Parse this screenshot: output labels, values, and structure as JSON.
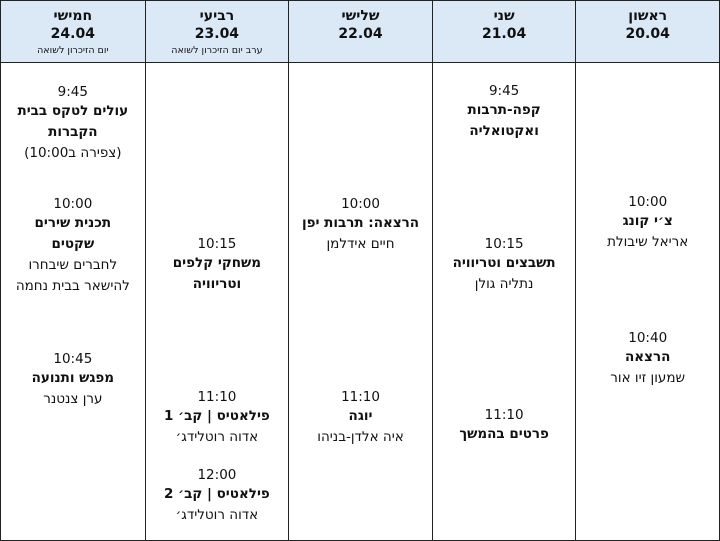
{
  "days": [
    {
      "name": "ראשון",
      "date": "20.04",
      "note": "",
      "events": [
        {
          "time": "10:00",
          "title": "צ׳י קונג",
          "sub": "אריאל שיבולת"
        },
        {
          "time": "10:40",
          "title": "הרצאה",
          "sub": "שמעון זיו אור"
        }
      ]
    },
    {
      "name": "שני",
      "date": "21.04",
      "note": "",
      "events": [
        {
          "time": "9:45",
          "title": "קפה-תרבות ואקטואליה",
          "sub": ""
        },
        {
          "time": "10:15",
          "title": "תשבצים וטריוויה",
          "sub": "נתליה גולן"
        },
        {
          "time": "11:10",
          "title": "פרטים בהמשך",
          "sub": ""
        }
      ]
    },
    {
      "name": "שלישי",
      "date": "22.04",
      "note": "",
      "events": [
        {
          "time": "10:00",
          "title": "הרצאה: תרבות יפן",
          "sub": "חיים אידלמן"
        },
        {
          "time": "11:10",
          "title": "יוגה",
          "sub": "איה אלדן-בניהו"
        }
      ]
    },
    {
      "name": "רביעי",
      "date": "23.04",
      "note": "ערב יום הזיכרון לשואה",
      "events": [
        {
          "time": "10:15",
          "title": "משחקי קלפים וטריוויה",
          "sub": ""
        },
        {
          "time": "11:10",
          "title": "פילאטיס | קב׳ 1",
          "sub": "אדוה רוטלידג׳"
        },
        {
          "time": "12:00",
          "title": "פילאטיס | קב׳ 2",
          "sub": "אדוה רוטלידג׳"
        }
      ]
    },
    {
      "name": "חמישי",
      "date": "24.04",
      "note": "יום הזיכרון לשואה",
      "events": [
        {
          "time": "9:45",
          "title": "עולים לטקס בבית הקברות",
          "sub": "(צפירה ב10:00)"
        },
        {
          "time": "10:00",
          "title": "תכנית שירים שקטים",
          "sub": "לחברים שיבחרו להישאר בבית נחמה"
        },
        {
          "time": "10:45",
          "title": "מפגש ותנועה",
          "sub": "ערן צנטנר"
        }
      ]
    }
  ]
}
